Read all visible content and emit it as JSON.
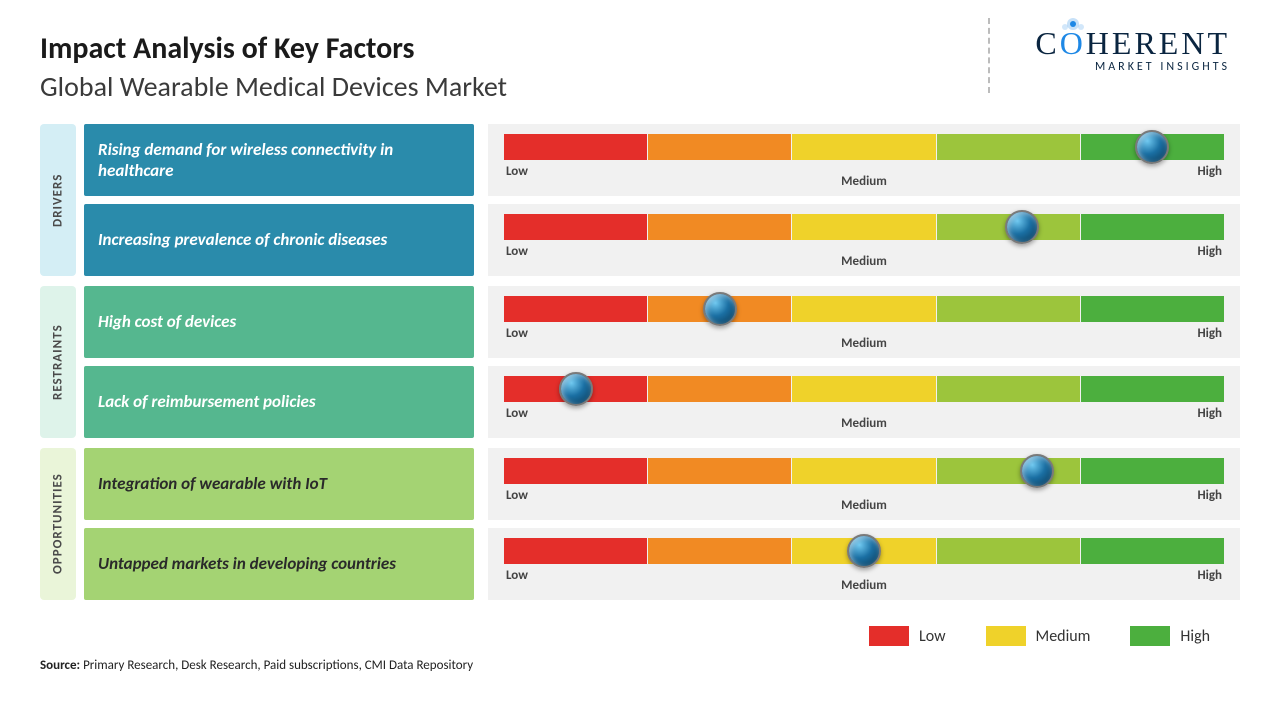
{
  "title": "Impact Analysis of Key Factors",
  "subtitle": "Global Wearable Medical Devices Market",
  "logo": {
    "main": "COHERENT",
    "sub": "MARKET INSIGHTS"
  },
  "groups": [
    {
      "label": "DRIVERS",
      "label_bg": "#d4eef5",
      "factor_bg": "#2a8bab",
      "factor_color": "#ffffff",
      "rows": [
        {
          "factor": "Rising demand for wireless connectivity in healthcare",
          "marker_pct": 90
        },
        {
          "factor": "Increasing prevalence of chronic diseases",
          "marker_pct": 72
        }
      ]
    },
    {
      "label": "RESTRAINTS",
      "label_bg": "#def3ea",
      "factor_bg": "#55b78f",
      "factor_color": "#ffffff",
      "rows": [
        {
          "factor": "High cost of devices",
          "marker_pct": 30
        },
        {
          "factor": "Lack of reimbursement policies",
          "marker_pct": 10
        }
      ]
    },
    {
      "label": "OPPORTUNITIES",
      "label_bg": "#eaf5d9",
      "factor_bg": "#a4d373",
      "factor_color": "#2a2a2a",
      "rows": [
        {
          "factor": "Integration of wearable with IoT",
          "marker_pct": 74
        },
        {
          "factor": "Untapped markets in developing countries",
          "marker_pct": 50
        }
      ]
    }
  ],
  "scale": {
    "segments": [
      "#e42e2a",
      "#f18a23",
      "#efd22a",
      "#9cc53c",
      "#4caf3e"
    ],
    "labels": {
      "low": "Low",
      "medium": "Medium",
      "high": "High"
    }
  },
  "legend": [
    {
      "label": "Low",
      "color": "#e42e2a"
    },
    {
      "label": "Medium",
      "color": "#efd22a"
    },
    {
      "label": "High",
      "color": "#4caf3e"
    }
  ],
  "source": {
    "prefix": "Source:",
    "text": " Primary Research, Desk Research, Paid subscriptions, CMI Data Repository"
  }
}
